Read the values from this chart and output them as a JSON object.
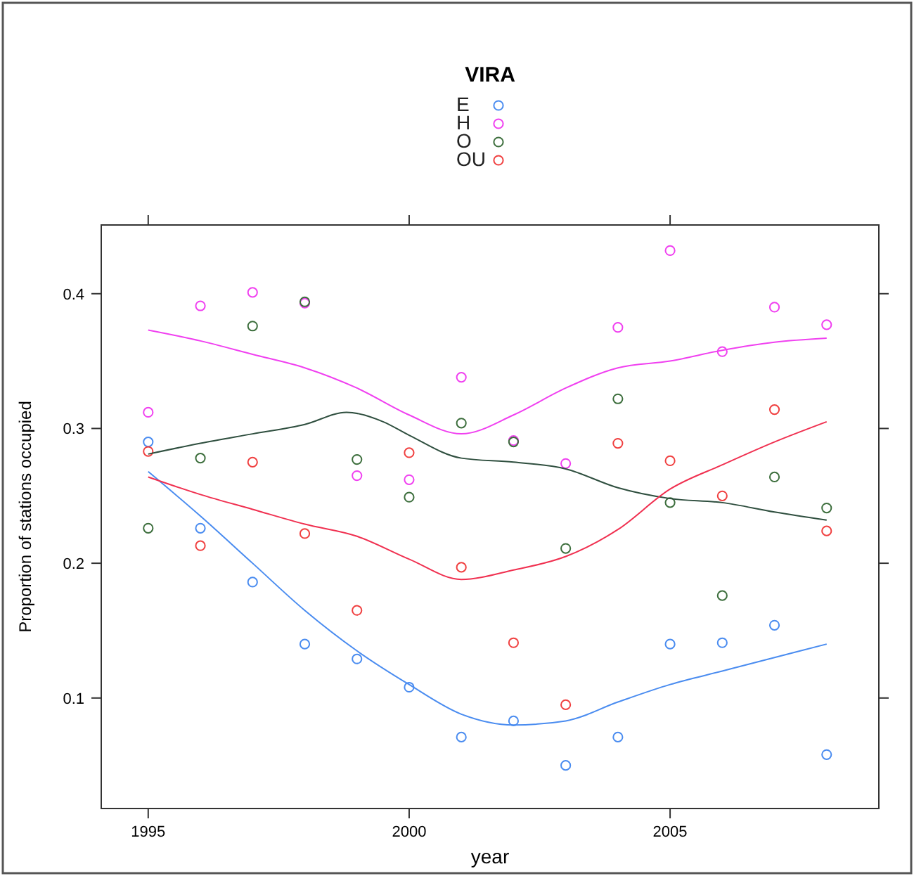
{
  "chart_data": {
    "type": "scatter",
    "legend_title": "VIRA",
    "xlabel": "year",
    "ylabel": "Proportion of stations occupied",
    "x": [
      1995,
      1996,
      1997,
      1998,
      1999,
      2000,
      2001,
      2002,
      2003,
      2004,
      2005,
      2006,
      2007,
      2008
    ],
    "xlim": [
      1994.1,
      2009
    ],
    "xticks": [
      1995,
      2000,
      2005
    ],
    "ylim": [
      0.018,
      0.451
    ],
    "yticks": [
      0.1,
      0.2,
      0.3,
      0.4
    ],
    "grid": false,
    "legend": "top",
    "marker": "circle",
    "series": [
      {
        "name": "E",
        "color": "#4a8cf0",
        "values": [
          0.29,
          0.226,
          0.186,
          0.14,
          0.129,
          0.108,
          0.071,
          0.083,
          0.05,
          0.071,
          0.14,
          0.141,
          0.154,
          0.058
        ]
      },
      {
        "name": "H",
        "color": "#f040f0",
        "values": [
          0.312,
          0.391,
          0.401,
          0.393,
          0.265,
          0.262,
          0.338,
          0.291,
          0.274,
          0.375,
          0.432,
          0.357,
          0.39,
          0.377
        ]
      },
      {
        "name": "O",
        "color": "#3c6e3c",
        "values": [
          0.226,
          0.278,
          0.376,
          0.394,
          0.277,
          0.249,
          0.304,
          0.29,
          0.211,
          0.322,
          0.245,
          0.176,
          0.264,
          0.241
        ]
      },
      {
        "name": "OU",
        "color": "#f04040",
        "values": [
          0.283,
          0.213,
          0.275,
          0.222,
          0.165,
          0.282,
          0.197,
          0.141,
          0.095,
          0.289,
          0.276,
          0.25,
          0.314,
          0.224
        ]
      },
      {
        "type": "line",
        "color": "#4a8cf0",
        "marker": "none",
        "values": [
          0.268,
          0.235,
          0.2,
          0.165,
          0.135,
          0.11,
          0.088,
          0.08,
          0.083,
          0.097,
          0.11,
          0.12,
          0.13,
          0.14
        ]
      },
      {
        "type": "line",
        "color": "#f040f0",
        "marker": "none",
        "values": [
          0.373,
          0.365,
          0.355,
          0.345,
          0.33,
          0.31,
          0.296,
          0.31,
          0.33,
          0.345,
          0.35,
          0.358,
          0.364,
          0.367
        ]
      },
      {
        "type": "line",
        "color": "#2f4f3f",
        "marker": "none",
        "x": [
          1995,
          1996,
          1997,
          1998,
          1998.8,
          1999.5,
          2000,
          2001,
          2002,
          2003,
          2004,
          2005,
          2006,
          2007,
          2008
        ],
        "values": [
          0.281,
          0.289,
          0.296,
          0.303,
          0.312,
          0.305,
          0.295,
          0.278,
          0.275,
          0.27,
          0.256,
          0.248,
          0.245,
          0.238,
          0.232
        ]
      },
      {
        "type": "line",
        "color": "#f03050",
        "marker": "none",
        "values": [
          0.264,
          0.251,
          0.24,
          0.229,
          0.22,
          0.203,
          0.188,
          0.195,
          0.205,
          0.225,
          0.255,
          0.273,
          0.29,
          0.305
        ]
      }
    ]
  }
}
